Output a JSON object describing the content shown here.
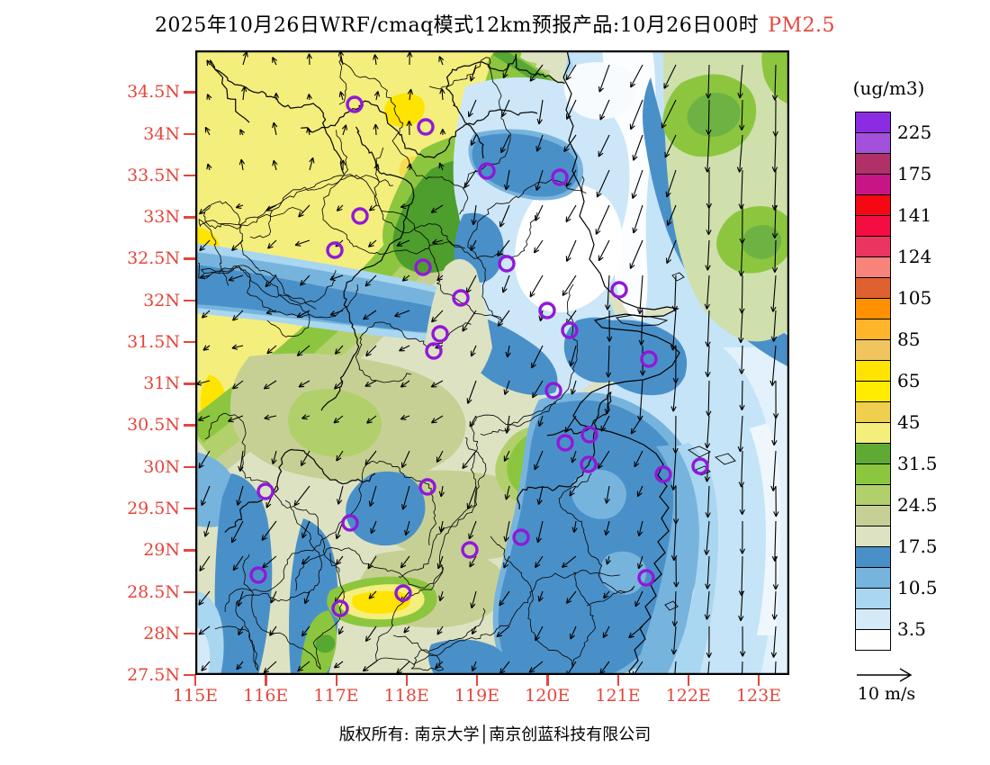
{
  "title": {
    "main": "2025年10月26日WRF/cmaq模式12km预报产品:10月26日00时",
    "variable": "PM2.5"
  },
  "colorbar": {
    "unit": "(ug/m3)",
    "boundary_labels": [
      "225",
      "175",
      "141",
      "124",
      "105",
      "85",
      "65",
      "45",
      "31.5",
      "24.5",
      "17.5",
      "10.5",
      "3.5"
    ],
    "cell_colors": [
      "#8B2BE2",
      "#A351DB",
      "#AF3168",
      "#C71585",
      "#F50714",
      "#F30D42",
      "#E93560",
      "#F8837B",
      "#DF612F",
      "#FF9000",
      "#FFB42A",
      "#F0C55F",
      "#FFE400",
      "#FFEC00",
      "#EFCF4D",
      "#F4EE7D",
      "#5FAA34",
      "#8CC63F",
      "#B1D06C",
      "#C7D094",
      "#DDE3C2",
      "#4A90C8",
      "#77B4DD",
      "#A9D6F0",
      "#D5EAF8",
      "#FFFFFF"
    ]
  },
  "axes": {
    "lat_labels": [
      "34.5N",
      "34N",
      "33.5N",
      "33N",
      "32.5N",
      "32N",
      "31.5N",
      "31N",
      "30.5N",
      "30N",
      "29.5N",
      "29N",
      "28.5N",
      "28N",
      "27.5N"
    ],
    "lon_labels": [
      "115E",
      "116E",
      "117E",
      "118E",
      "119E",
      "120E",
      "121E",
      "122E",
      "123E"
    ],
    "label_color": "#E6453C"
  },
  "wind_reference": {
    "label": "10 m/s"
  },
  "footer": {
    "copyright": "版权所有: 南京大学│南京创蓝科技有限公司"
  },
  "stations": {
    "marker_color": "#9018D9",
    "points": [
      [
        177,
        60
      ],
      [
        256,
        85
      ],
      [
        324,
        134
      ],
      [
        405,
        141
      ],
      [
        183,
        184
      ],
      [
        155,
        222
      ],
      [
        253,
        241
      ],
      [
        346,
        237
      ],
      [
        471,
        266
      ],
      [
        295,
        275
      ],
      [
        391,
        289
      ],
      [
        416,
        311
      ],
      [
        272,
        315
      ],
      [
        265,
        334
      ],
      [
        504,
        343
      ],
      [
        398,
        378
      ],
      [
        438,
        427
      ],
      [
        411,
        436
      ],
      [
        437,
        460
      ],
      [
        520,
        471
      ],
      [
        561,
        462
      ],
      [
        78,
        490
      ],
      [
        258,
        485
      ],
      [
        172,
        525
      ],
      [
        362,
        541
      ],
      [
        305,
        555
      ],
      [
        70,
        583
      ],
      [
        231,
        603
      ],
      [
        161,
        620
      ],
      [
        501,
        586
      ]
    ]
  },
  "wind_field": {
    "arrow_color": "#000000",
    "zones": [
      {
        "name": "northwest-corner",
        "angle": 355,
        "spread": 50,
        "length": 11,
        "jitter": 5
      },
      {
        "name": "west-inland",
        "angle": 240,
        "spread": 36,
        "length": 13,
        "jitter": 5
      },
      {
        "name": "center",
        "angle": 203,
        "spread": 30,
        "length": 20,
        "jitter": 8
      },
      {
        "name": "south-inland",
        "angle": 214,
        "spread": 40,
        "length": 15,
        "jitter": 6
      },
      {
        "name": "northeast-sea",
        "angle": 203,
        "spread": 10,
        "length": 30,
        "jitter": 6
      },
      {
        "name": "ocean-east",
        "angle": 182,
        "spread": 6,
        "length": 38,
        "jitter": 7
      }
    ]
  }
}
